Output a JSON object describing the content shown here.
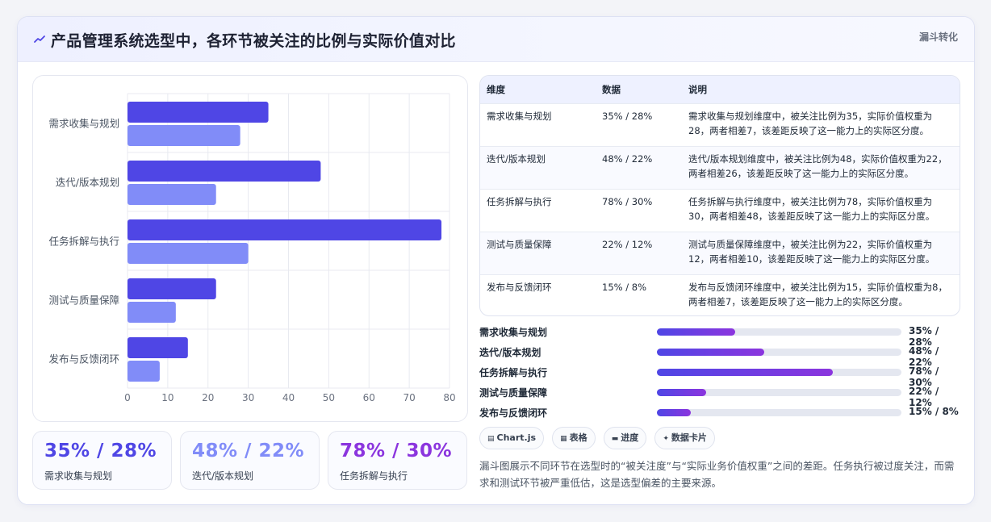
{
  "header": {
    "title": "产品管理系统选型中，各环节被关注的比例与实际价值对比",
    "tag": "漏斗转化"
  },
  "chart_data": {
    "type": "bar",
    "orientation": "horizontal",
    "categories": [
      "需求收集与规划",
      "迭代/版本规划",
      "任务拆解与执行",
      "测试与质量保障",
      "发布与反馈闭环"
    ],
    "series": [
      {
        "values": [
          35,
          48,
          78,
          22,
          15
        ],
        "color": "#4f46e5"
      },
      {
        "values": [
          28,
          22,
          30,
          12,
          8
        ],
        "color": "#818cf8"
      }
    ],
    "xlim": [
      0,
      80
    ],
    "x_ticks": [
      "0",
      "10",
      "20",
      "30",
      "40",
      "50",
      "60",
      "70",
      "80"
    ],
    "grid": true,
    "legend": "none"
  },
  "kpis": [
    {
      "value": "35% / 28%",
      "label": "需求收集与规划",
      "color": "#4f46e5"
    },
    {
      "value": "48% / 22%",
      "label": "迭代/版本规划",
      "color": "#818cf8"
    },
    {
      "value": "78% / 30%",
      "label": "任务拆解与执行",
      "color": "#8b35de"
    }
  ],
  "table": {
    "headers": [
      "维度",
      "数据",
      "说明"
    ],
    "rows": [
      [
        "需求收集与规划",
        "35% / 28%",
        "需求收集与规划维度中，被关注比例为35，实际价值权重为28，两者相差7，该差距反映了这一能力上的实际区分度。"
      ],
      [
        "迭代/版本规划",
        "48% / 22%",
        "迭代/版本规划维度中，被关注比例为48，实际价值权重为22，两者相差26，该差距反映了这一能力上的实际区分度。"
      ],
      [
        "任务拆解与执行",
        "78% / 30%",
        "任务拆解与执行维度中，被关注比例为78，实际价值权重为30，两者相差48，该差距反映了这一能力上的实际区分度。"
      ],
      [
        "测试与质量保障",
        "22% / 12%",
        "测试与质量保障维度中，被关注比例为22，实际价值权重为12，两者相差10，该差距反映了这一能力上的实际区分度。"
      ],
      [
        "发布与反馈闭环",
        "15% / 8%",
        "发布与反馈闭环维度中，被关注比例为15，实际价值权重为8，两者相差7，该差距反映了这一能力上的实际区分度。"
      ]
    ]
  },
  "progress": [
    {
      "label": "需求收集与规划",
      "value": "35% / 28%",
      "fraction": 0.32
    },
    {
      "label": "迭代/版本规划",
      "value": "48% / 22%",
      "fraction": 0.44
    },
    {
      "label": "任务拆解与执行",
      "value": "78% / 30%",
      "fraction": 0.72
    },
    {
      "label": "测试与质量保障",
      "value": "22% / 12%",
      "fraction": 0.2
    },
    {
      "label": "发布与反馈闭环",
      "value": "15% / 8%",
      "fraction": 0.14
    }
  ],
  "chips": [
    {
      "icon": "chart-icon",
      "glyph": "▤",
      "label": "Chart.js"
    },
    {
      "icon": "table-icon",
      "glyph": "▦",
      "label": "表格"
    },
    {
      "icon": "progress-icon",
      "glyph": "▬",
      "label": "进度"
    },
    {
      "icon": "sparkle-icon",
      "glyph": "✦",
      "label": "数据卡片"
    }
  ],
  "description": "漏斗图展示不同环节在选型时的“被关注度”与“实际业务价值权重”之间的差距。任务执行被过度关注，而需求和测试环节被严重低估，这是选型偏差的主要来源。",
  "colors": {
    "primary": "#4f46e5",
    "secondary": "#818cf8",
    "accent": "#8b35de"
  }
}
